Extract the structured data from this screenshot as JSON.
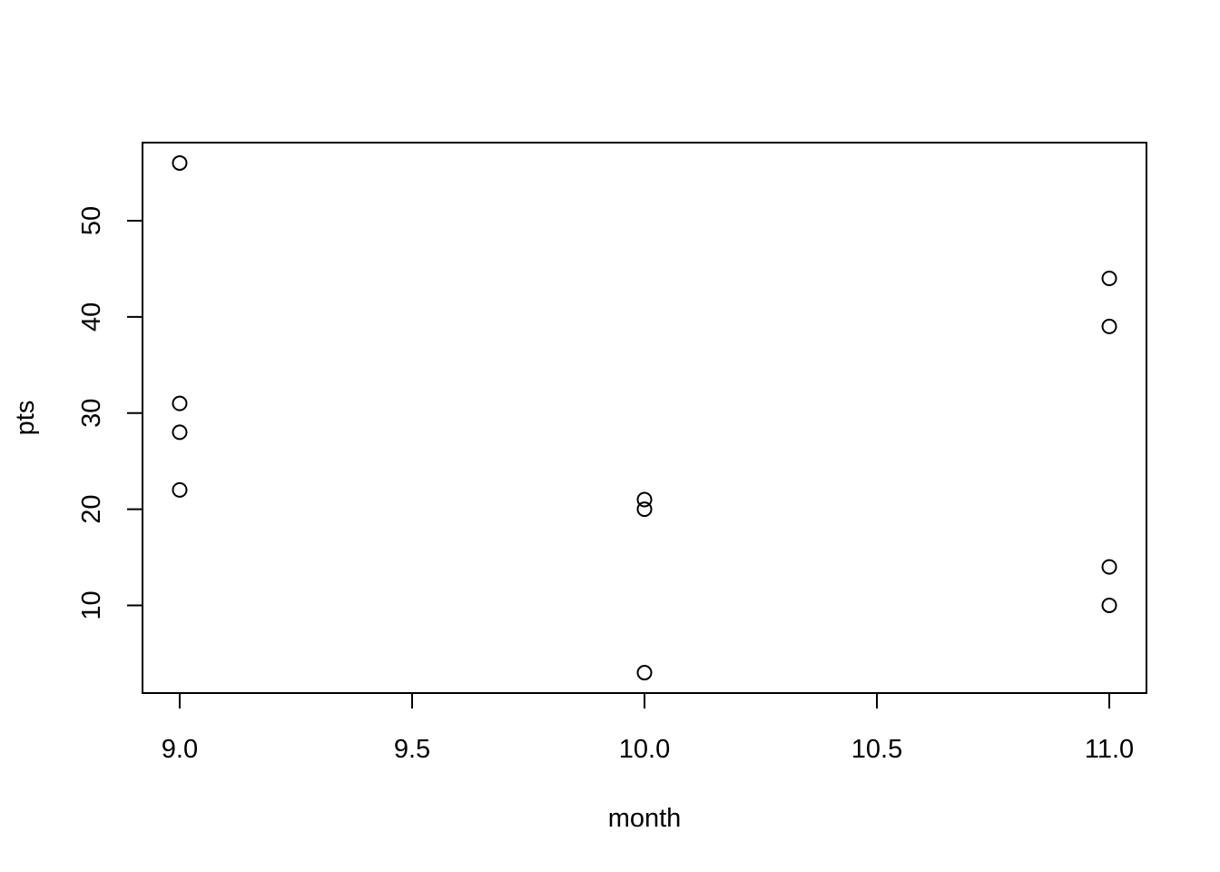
{
  "chart_data": {
    "type": "scatter",
    "x_label": "month",
    "y_label": "pts",
    "x": [
      9,
      9,
      9,
      9,
      10,
      10,
      10,
      11,
      11,
      11,
      11
    ],
    "values": [
      56,
      31,
      28,
      22,
      21,
      20,
      3,
      44,
      39,
      14,
      10
    ],
    "color": "#000000",
    "xlim": [
      8.92,
      11.08
    ],
    "xticks": [
      {
        "value": 9,
        "label": "9.0"
      },
      9.5,
      {
        "value": 10,
        "label": "10.0"
      },
      10.5,
      {
        "value": 11,
        "label": "11.0"
      }
    ],
    "ylim": [
      0.88,
      58.12
    ],
    "yticks": [
      10,
      20,
      30,
      40,
      50
    ],
    "grid": false
  }
}
